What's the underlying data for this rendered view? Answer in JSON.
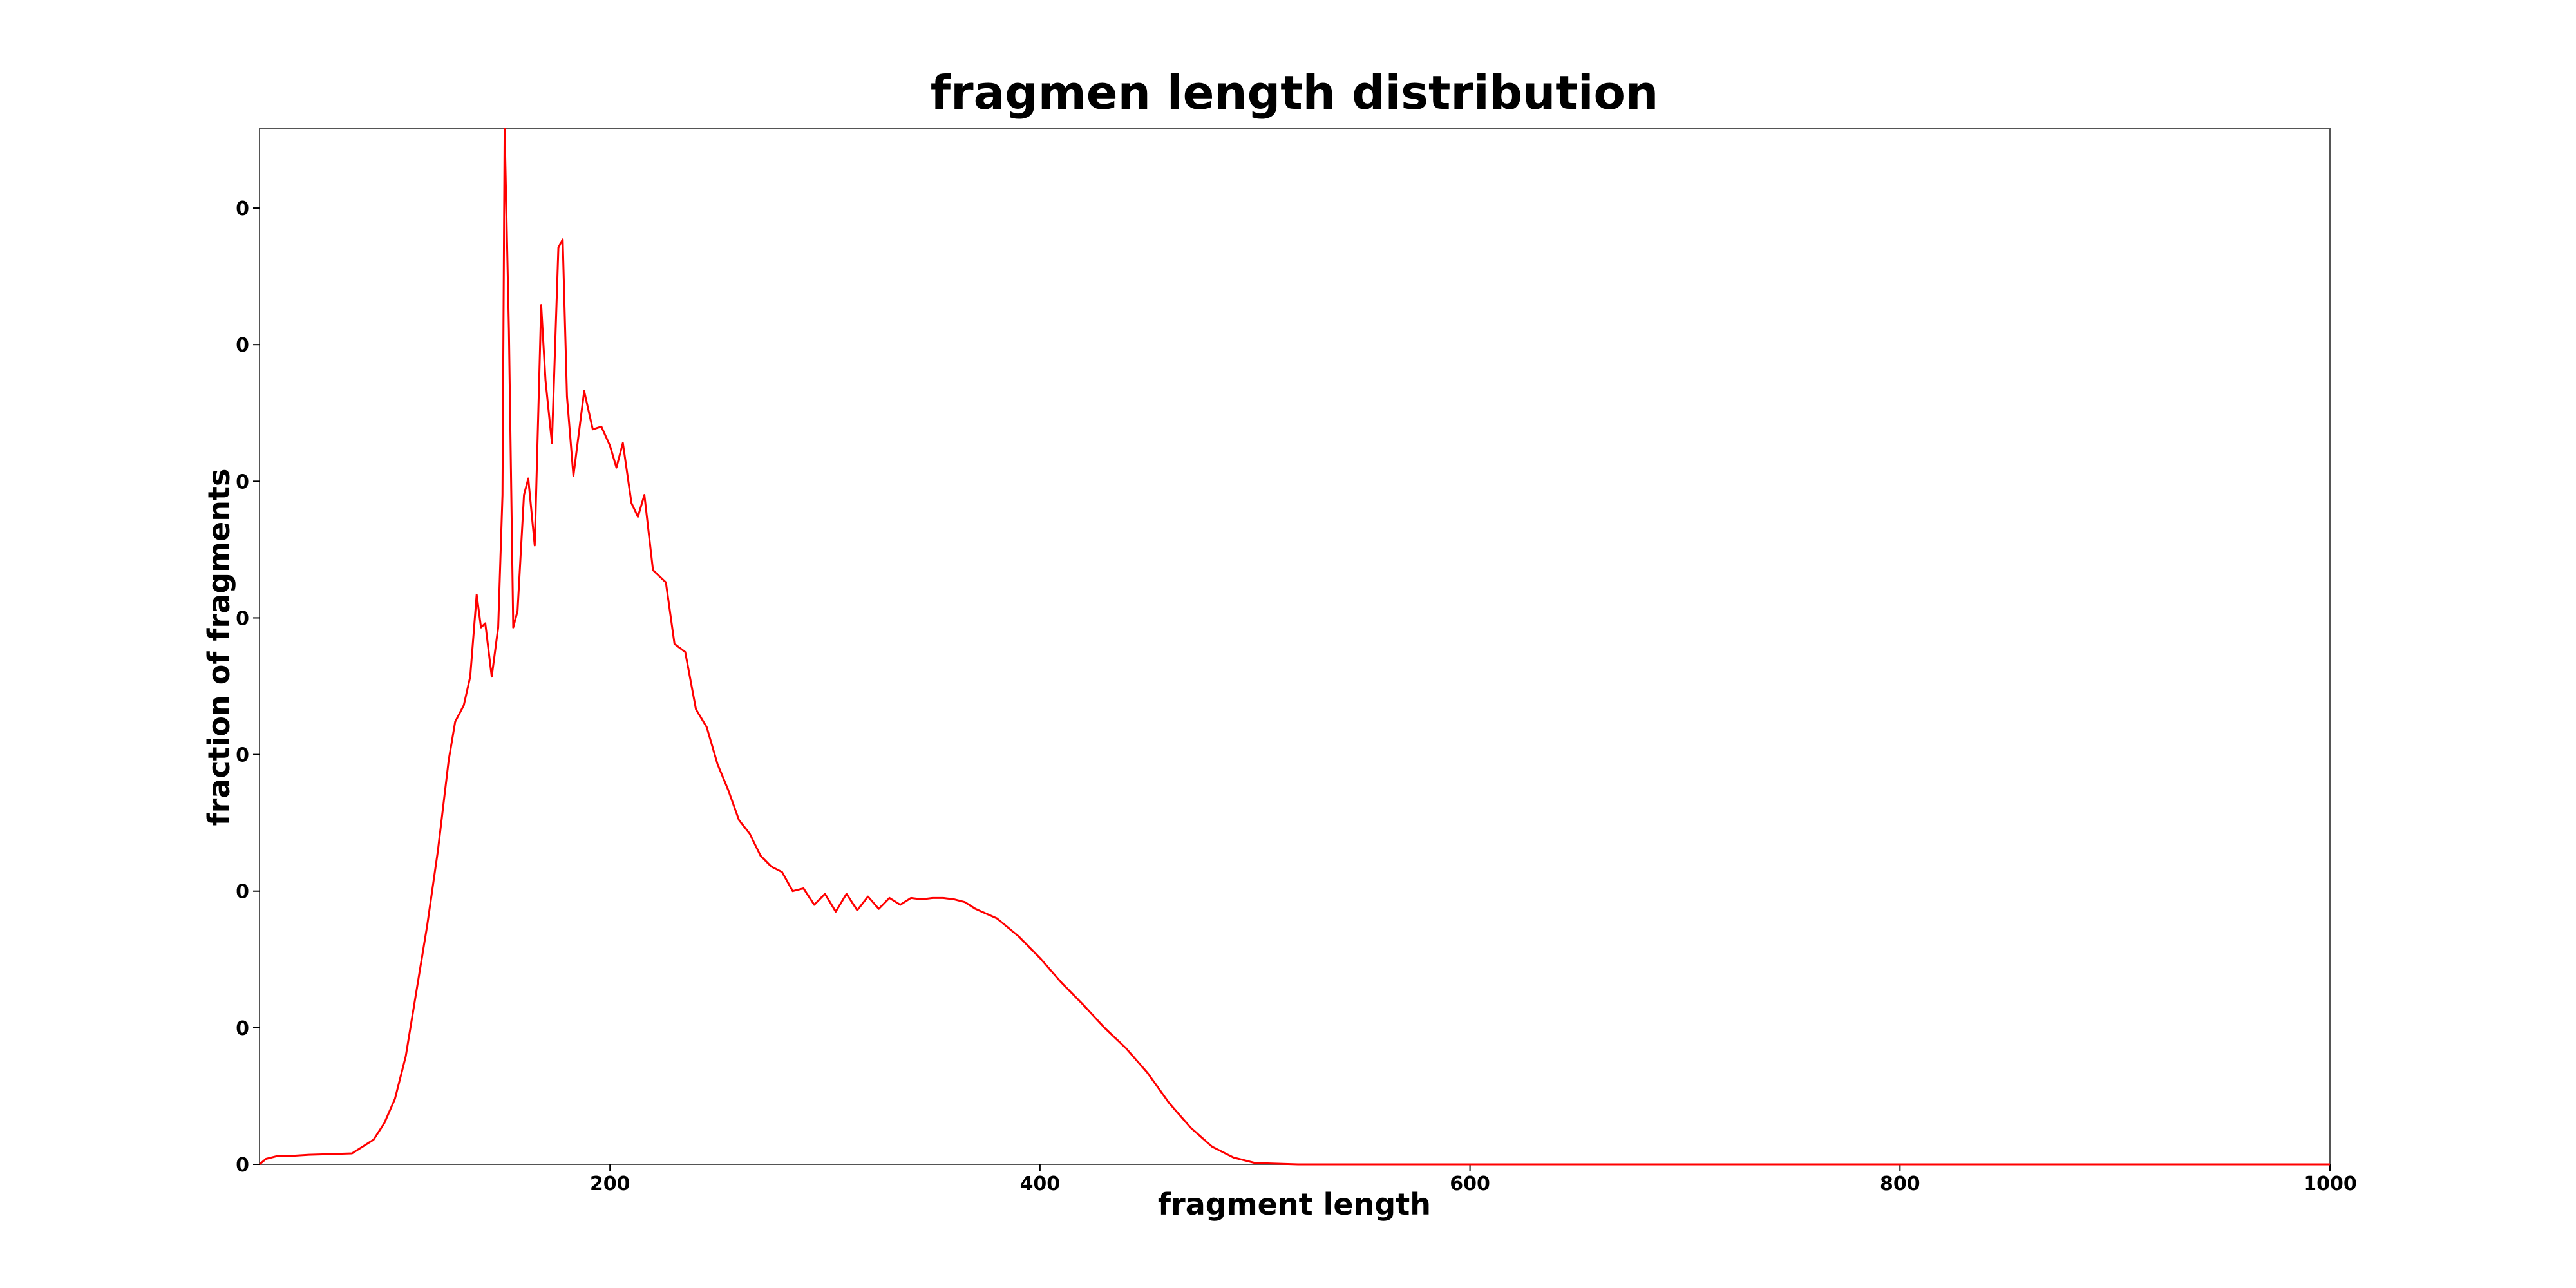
{
  "chart_data": {
    "type": "line",
    "title": "fragmen length distribution",
    "x_label": "fragment length",
    "y_label": "fraction of fragments",
    "series": [
      {
        "color": "#ff0000",
        "x": [
          37,
          40,
          45,
          50,
          60,
          80,
          90,
          95,
          100,
          105,
          110,
          115,
          120,
          125,
          128,
          132,
          135,
          138,
          140,
          142,
          145,
          148,
          150,
          151,
          153,
          155,
          157,
          160,
          162,
          165,
          168,
          170,
          173,
          176,
          178,
          180,
          183,
          188,
          192,
          196,
          200,
          203,
          206,
          210,
          213,
          216,
          220,
          224,
          226,
          230,
          235,
          240,
          245,
          250,
          255,
          260,
          265,
          270,
          275,
          280,
          285,
          290,
          295,
          300,
          305,
          310,
          315,
          320,
          325,
          330,
          335,
          340,
          345,
          350,
          355,
          360,
          365,
          370,
          380,
          390,
          400,
          410,
          420,
          430,
          440,
          450,
          460,
          470,
          480,
          490,
          500,
          520,
          600,
          700,
          800,
          900,
          1000
        ],
        "values": [
          0.0,
          4e-05,
          6e-05,
          6e-05,
          7e-05,
          8e-05,
          0.00018,
          0.0003,
          0.00048,
          0.00079,
          0.00127,
          0.00175,
          0.0023,
          0.00296,
          0.00324,
          0.00336,
          0.00357,
          0.00417,
          0.00393,
          0.00396,
          0.00357,
          0.00393,
          0.0049,
          0.00758,
          0.0061,
          0.00393,
          0.00405,
          0.0049,
          0.00502,
          0.00453,
          0.00629,
          0.00574,
          0.00528,
          0.00671,
          0.00677,
          0.00562,
          0.00504,
          0.00566,
          0.00538,
          0.0054,
          0.00526,
          0.0051,
          0.00528,
          0.00484,
          0.00474,
          0.0049,
          0.00435,
          0.00429,
          0.00426,
          0.00381,
          0.00375,
          0.00333,
          0.0032,
          0.00293,
          0.00274,
          0.00252,
          0.00242,
          0.00226,
          0.00218,
          0.00214,
          0.002,
          0.00202,
          0.0019,
          0.00198,
          0.00185,
          0.00198,
          0.00186,
          0.00196,
          0.00187,
          0.00195,
          0.0019,
          0.00195,
          0.00194,
          0.00195,
          0.00195,
          0.00194,
          0.00192,
          0.00187,
          0.0018,
          0.00167,
          0.00151,
          0.00133,
          0.00117,
          0.001,
          0.00085,
          0.00067,
          0.00045,
          0.00027,
          0.00013,
          5e-05,
          1e-05,
          0.0,
          0.0,
          0.0,
          0.0,
          0.0,
          0.0
        ]
      }
    ],
    "xlim": [
      37,
      1000
    ],
    "xticks": [
      200,
      400,
      600,
      800,
      1000
    ],
    "ylim": [
      0,
      0.00758
    ],
    "yticks": [
      0,
      {
        "value": 0.001,
        "label": "0"
      },
      {
        "value": 0.002,
        "label": "0"
      },
      {
        "value": 0.003,
        "label": "0"
      },
      {
        "value": 0.004,
        "label": "0"
      },
      {
        "value": 0.005,
        "label": "0"
      },
      {
        "value": 0.006,
        "label": "0"
      },
      {
        "value": 0.007,
        "label": "0"
      }
    ],
    "grid": false
  }
}
